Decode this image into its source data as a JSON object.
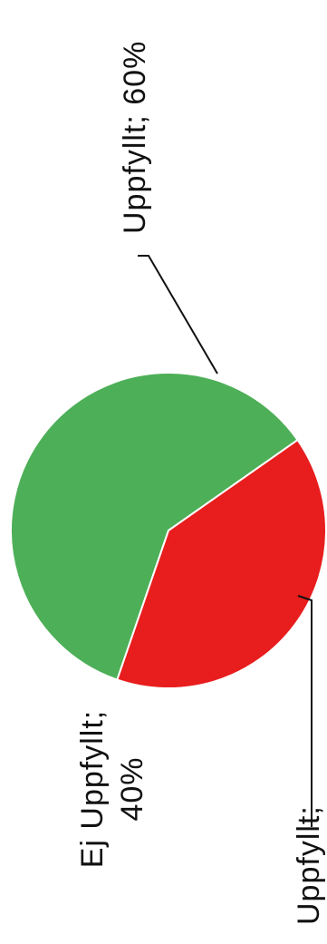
{
  "chart_data": {
    "type": "pie",
    "title": "",
    "slices": [
      {
        "label": "Uppfyllt",
        "value": 60,
        "display": "Uppfyllt; 60%",
        "color": "#4daf57"
      },
      {
        "label": "Ej Uppfyllt",
        "value": 40,
        "display_line1": "Ej Uppfyllt;",
        "display_line2": "40%",
        "color": "#e81d1d"
      }
    ],
    "extra_labels": [
      {
        "text": "Uppfyllt;"
      }
    ],
    "legend": "none",
    "slice_separator_color": "#ffffff",
    "label_text_color": "#111111",
    "orientation": "rotated 90° counter-clockwise"
  }
}
